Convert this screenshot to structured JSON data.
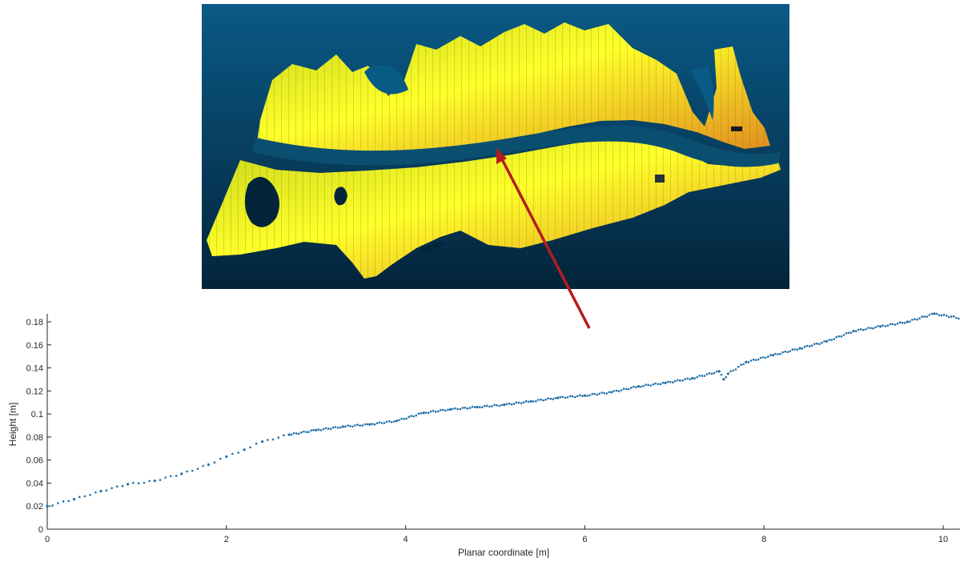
{
  "figure": {
    "inset": {
      "kind": "lidar-point-cloud-render",
      "colors": {
        "bg_top": "#0a5a86",
        "bg_bottom": "#04243a",
        "cloud_high": "#ffff2a",
        "cloud_mid": "#c8d41a",
        "cloud_low": "#e08a1e",
        "channel": "#0b4f70"
      }
    },
    "arrow": {
      "color": "#b41d1d"
    }
  },
  "chart_data": {
    "type": "scatter",
    "title": "",
    "xlabel": "Planar coordinate [m]",
    "ylabel": "Height [m]",
    "xlim": [
      0,
      10.2
    ],
    "ylim": [
      0,
      0.185
    ],
    "xticks": [
      0,
      2,
      4,
      6,
      8,
      10
    ],
    "xtick_labels": [
      "0",
      "2",
      "4",
      "6",
      "8",
      "10"
    ],
    "yticks": [
      0,
      0.02,
      0.04,
      0.06,
      0.08,
      0.1,
      0.12,
      0.14,
      0.16,
      0.18
    ],
    "ytick_labels": [
      "0",
      "0.02",
      "0.04",
      "0.06",
      "0.08",
      "0.1",
      "0.12",
      "0.14",
      "0.16",
      "0.18"
    ],
    "grid": false,
    "marker_color": "#1f6fa8",
    "series": [
      {
        "x": [
          0.0,
          0.3,
          0.6,
          0.9,
          1.2,
          1.5,
          1.8,
          2.0,
          2.2,
          2.4,
          2.7,
          3.0,
          3.3,
          3.6,
          3.9,
          4.2,
          4.5,
          4.8,
          5.1,
          5.4,
          5.7,
          6.0,
          6.3,
          6.6,
          6.9,
          7.2,
          7.5,
          7.55,
          7.6,
          7.8,
          8.1,
          8.4,
          8.7,
          9.0,
          9.3,
          9.6,
          9.9,
          10.2
        ],
        "y": [
          0.02,
          0.026,
          0.033,
          0.039,
          0.042,
          0.048,
          0.056,
          0.063,
          0.069,
          0.076,
          0.082,
          0.086,
          0.089,
          0.091,
          0.094,
          0.101,
          0.104,
          0.106,
          0.108,
          0.111,
          0.114,
          0.116,
          0.119,
          0.124,
          0.127,
          0.131,
          0.137,
          0.13,
          0.135,
          0.145,
          0.151,
          0.157,
          0.163,
          0.172,
          0.176,
          0.18,
          0.187,
          0.183
        ]
      }
    ]
  }
}
